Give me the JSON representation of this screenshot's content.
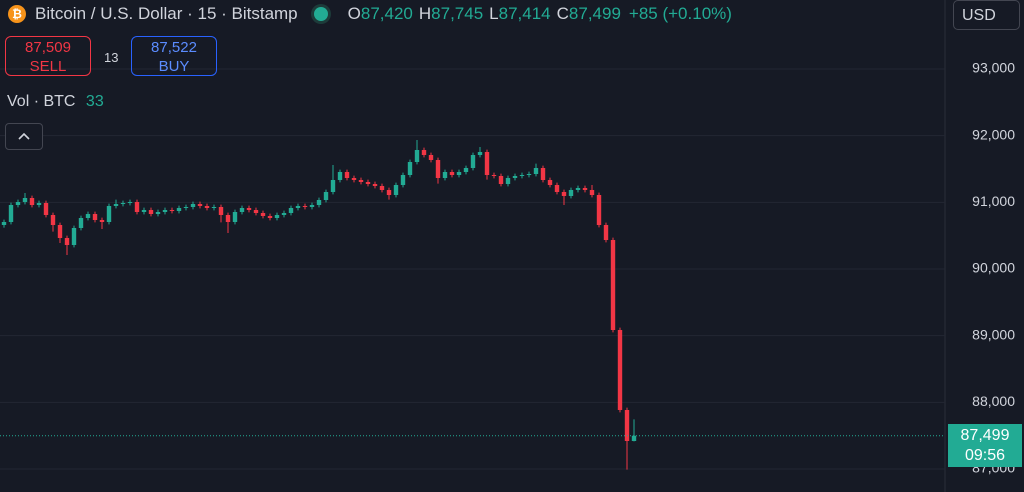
{
  "header": {
    "symbol": "Bitcoin / U.S. Dollar · 15 · Bitstamp",
    "ohlc": [
      {
        "key": "O",
        "value": "87,420"
      },
      {
        "key": "H",
        "value": "87,745"
      },
      {
        "key": "L",
        "value": "87,414"
      },
      {
        "key": "C",
        "value": "87,499"
      }
    ],
    "change": "+85 (+0.10%)",
    "sell": {
      "price": "87,509",
      "label": "SELL"
    },
    "spread": "13",
    "buy": {
      "price": "87,522",
      "label": "BUY"
    },
    "volume": {
      "label": "Vol · BTC",
      "value": "33"
    },
    "currency": "USD",
    "price_tag": "87,499",
    "countdown": "09:56"
  },
  "chart_data": {
    "type": "candlestick",
    "up_color": "#22ab94",
    "down_color": "#f23645",
    "ylim": [
      86655,
      94035
    ],
    "yticks": [
      {
        "value": 87000,
        "label": "87,000"
      },
      {
        "value": 88000,
        "label": "88,000"
      },
      {
        "value": 89000,
        "label": "89,000"
      },
      {
        "value": 90000,
        "label": "90,000"
      },
      {
        "value": 91000,
        "label": "91,000"
      },
      {
        "value": 92000,
        "label": "92,000"
      },
      {
        "value": 93000,
        "label": "93,000"
      }
    ],
    "grid": true,
    "ohlc": [
      [
        90660,
        90740,
        90620,
        90705
      ],
      [
        90705,
        90995,
        90670,
        90960
      ],
      [
        90960,
        91040,
        90925,
        91005
      ],
      [
        91005,
        91140,
        90970,
        91065
      ],
      [
        91065,
        91100,
        90925,
        90960
      ],
      [
        90960,
        91025,
        90925,
        90990
      ],
      [
        90990,
        91025,
        90775,
        90810
      ],
      [
        90810,
        90845,
        90560,
        90660
      ],
      [
        90660,
        90695,
        90390,
        90465
      ],
      [
        90465,
        90500,
        90210,
        90360
      ],
      [
        90360,
        90650,
        90325,
        90615
      ],
      [
        90615,
        90800,
        90580,
        90765
      ],
      [
        90765,
        90860,
        90730,
        90825
      ],
      [
        90825,
        90860,
        90700,
        90735
      ],
      [
        90735,
        90770,
        90600,
        90705
      ],
      [
        90705,
        90980,
        90670,
        90945
      ],
      [
        90945,
        91040,
        90910,
        90975
      ],
      [
        90975,
        91025,
        90940,
        90990
      ],
      [
        90990,
        91040,
        90955,
        91005
      ],
      [
        91005,
        91040,
        90820,
        90855
      ],
      [
        90855,
        90920,
        90820,
        90885
      ],
      [
        90885,
        90920,
        90790,
        90825
      ],
      [
        90825,
        90890,
        90790,
        90855
      ],
      [
        90855,
        90920,
        90820,
        90885
      ],
      [
        90885,
        90920,
        90835,
        90870
      ],
      [
        90870,
        90950,
        90835,
        90915
      ],
      [
        90915,
        90965,
        90880,
        90930
      ],
      [
        90930,
        91010,
        90895,
        90975
      ],
      [
        90975,
        91010,
        90910,
        90945
      ],
      [
        90945,
        90980,
        90880,
        90915
      ],
      [
        90915,
        90965,
        90880,
        90930
      ],
      [
        90930,
        90965,
        90700,
        90810
      ],
      [
        90810,
        90845,
        90540,
        90705
      ],
      [
        90705,
        90890,
        90670,
        90855
      ],
      [
        90855,
        90950,
        90820,
        90915
      ],
      [
        90915,
        90950,
        90850,
        90885
      ],
      [
        90885,
        90920,
        90805,
        90840
      ],
      [
        90840,
        90875,
        90760,
        90795
      ],
      [
        90795,
        90830,
        90730,
        90765
      ],
      [
        90765,
        90845,
        90730,
        90810
      ],
      [
        90810,
        90875,
        90775,
        90840
      ],
      [
        90840,
        90950,
        90805,
        90915
      ],
      [
        90915,
        90980,
        90880,
        90945
      ],
      [
        90945,
        90980,
        90895,
        90930
      ],
      [
        90930,
        90995,
        90895,
        90960
      ],
      [
        90960,
        91070,
        90925,
        91035
      ],
      [
        91035,
        91190,
        91000,
        91155
      ],
      [
        91155,
        91560,
        91120,
        91335
      ],
      [
        91335,
        91490,
        91300,
        91455
      ],
      [
        91455,
        91490,
        91330,
        91365
      ],
      [
        91365,
        91400,
        91300,
        91335
      ],
      [
        91335,
        91370,
        91270,
        91305
      ],
      [
        91305,
        91340,
        91240,
        91275
      ],
      [
        91275,
        91310,
        91210,
        91245
      ],
      [
        91245,
        91280,
        91150,
        91185
      ],
      [
        91185,
        91220,
        91040,
        91110
      ],
      [
        91110,
        91295,
        91075,
        91260
      ],
      [
        91260,
        91445,
        91225,
        91410
      ],
      [
        91410,
        91640,
        91375,
        91605
      ],
      [
        91605,
        91935,
        91570,
        91785
      ],
      [
        91785,
        91820,
        91675,
        91710
      ],
      [
        91710,
        91745,
        91600,
        91635
      ],
      [
        91635,
        91670,
        91280,
        91365
      ],
      [
        91365,
        91490,
        91330,
        91455
      ],
      [
        91455,
        91490,
        91375,
        91410
      ],
      [
        91410,
        91490,
        91375,
        91455
      ],
      [
        91455,
        91550,
        91420,
        91515
      ],
      [
        91515,
        91745,
        91480,
        91710
      ],
      [
        91710,
        91830,
        91675,
        91755
      ],
      [
        91755,
        91790,
        91340,
        91410
      ],
      [
        91410,
        91445,
        91360,
        91395
      ],
      [
        91395,
        91430,
        91240,
        91275
      ],
      [
        91275,
        91400,
        91240,
        91365
      ],
      [
        91365,
        91430,
        91330,
        91395
      ],
      [
        91395,
        91445,
        91360,
        91410
      ],
      [
        91410,
        91460,
        91375,
        91425
      ],
      [
        91425,
        91580,
        91390,
        91515
      ],
      [
        91515,
        91550,
        91300,
        91335
      ],
      [
        91335,
        91370,
        91225,
        91260
      ],
      [
        91260,
        91295,
        91120,
        91155
      ],
      [
        91155,
        91190,
        90960,
        91095
      ],
      [
        91095,
        91220,
        91060,
        91185
      ],
      [
        91185,
        91250,
        91150,
        91215
      ],
      [
        91215,
        91250,
        91150,
        91185
      ],
      [
        91185,
        91260,
        91075,
        91110
      ],
      [
        91110,
        91145,
        90625,
        90660
      ],
      [
        90660,
        90695,
        90400,
        90435
      ],
      [
        90435,
        90470,
        89050,
        89085
      ],
      [
        89085,
        89120,
        87850,
        87885
      ],
      [
        87885,
        87920,
        86990,
        87420
      ],
      [
        87420,
        87745,
        87414,
        87499
      ]
    ]
  }
}
